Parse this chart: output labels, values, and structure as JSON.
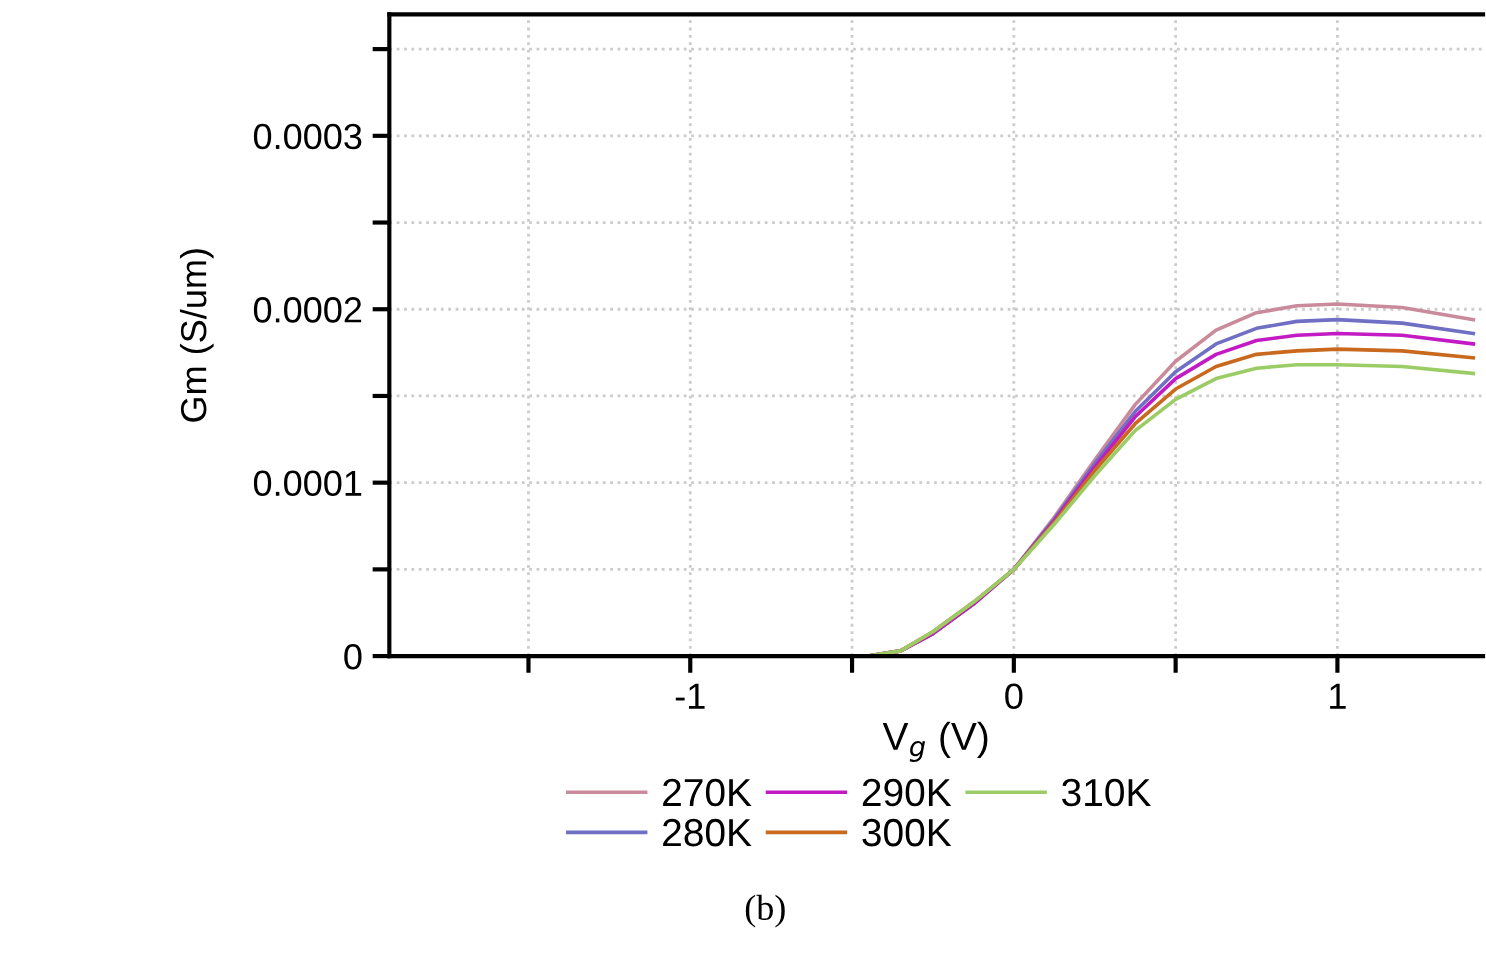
{
  "chart_data": {
    "type": "line",
    "xlabel": "V$_{g}$ (V)",
    "ylabel": "Gm (S/um)",
    "annotations": [
      "(b)"
    ],
    "x": [
      -0.45,
      -0.35,
      -0.25,
      -0.125,
      0,
      0.125,
      0.25,
      0.375,
      0.5,
      0.625,
      0.75,
      0.875,
      1,
      1.2,
      1.42
    ],
    "series": [
      {
        "name": "270K",
        "color": "#c98a9b",
        "values": [
          0,
          3e-06,
          1.3e-05,
          3e-05,
          5e-05,
          8e-05,
          0.000113,
          0.000145,
          0.00017,
          0.000188,
          0.000198,
          0.000202,
          0.000203,
          0.000201,
          0.000194
        ]
      },
      {
        "name": "280K",
        "color": "#6f6fc4",
        "values": [
          0,
          3e-06,
          1.3e-05,
          3e-05,
          5e-05,
          7.9e-05,
          0.000111,
          0.000141,
          0.000164,
          0.00018,
          0.000189,
          0.000193,
          0.000194,
          0.000192,
          0.000186
        ]
      },
      {
        "name": "290K",
        "color": "#c21bc4",
        "values": [
          0,
          3e-06,
          1.3e-05,
          3e-05,
          5e-05,
          7.8e-05,
          0.000109,
          0.000138,
          0.00016,
          0.000174,
          0.000182,
          0.000185,
          0.000186,
          0.000185,
          0.00018
        ]
      },
      {
        "name": "300K",
        "color": "#c8691e",
        "values": [
          0,
          3e-06,
          1.4e-05,
          3.1e-05,
          5e-05,
          7.7e-05,
          0.000107,
          0.000134,
          0.000154,
          0.000167,
          0.000174,
          0.000176,
          0.000177,
          0.000176,
          0.000172
        ]
      },
      {
        "name": "310K",
        "color": "#9ccc65",
        "values": [
          0,
          3e-06,
          1.4e-05,
          3.1e-05,
          5e-05,
          7.6e-05,
          0.000104,
          0.00013,
          0.000148,
          0.00016,
          0.000166,
          0.000168,
          0.000168,
          0.000167,
          0.000163
        ]
      }
    ],
    "xlim": [
      -1.93,
      1.45
    ],
    "ylim": [
      0,
      0.00037
    ],
    "xticks": [
      {
        "value": -1.5,
        "label": null
      },
      -1,
      {
        "value": -0.5,
        "label": null
      },
      0,
      {
        "value": 0.5,
        "label": null
      },
      1
    ],
    "yticks": [
      0,
      {
        "value": 5e-05,
        "label": null
      },
      0.0001,
      {
        "value": 0.00015,
        "label": null
      },
      0.0002,
      {
        "value": 0.00025,
        "label": null
      },
      0.0003,
      {
        "value": 0.00035,
        "label": null
      }
    ],
    "grid": true,
    "legend": "bottom",
    "marker": "none",
    "line_style": "solid"
  }
}
